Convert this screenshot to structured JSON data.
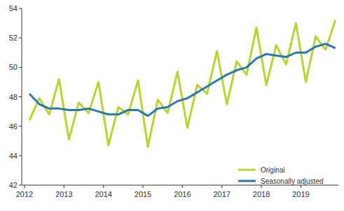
{
  "chart_data": {
    "type": "line",
    "x": [
      2012.125,
      2012.375,
      2012.625,
      2012.875,
      2013.125,
      2013.375,
      2013.625,
      2013.875,
      2014.125,
      2014.375,
      2014.625,
      2014.875,
      2015.125,
      2015.375,
      2015.625,
      2015.875,
      2016.125,
      2016.375,
      2016.625,
      2016.875,
      2017.125,
      2017.375,
      2017.625,
      2017.875,
      2018.125,
      2018.375,
      2018.625,
      2018.875,
      2019.125,
      2019.375,
      2019.625,
      2019.875
    ],
    "series": [
      {
        "name": "Original",
        "color": "#b8d432",
        "values": [
          46.4,
          47.9,
          46.8,
          49.2,
          45.1,
          47.6,
          46.9,
          49.0,
          44.7,
          47.3,
          46.8,
          49.1,
          44.6,
          47.8,
          46.9,
          49.7,
          45.9,
          48.8,
          48.2,
          51.1,
          47.5,
          50.4,
          49.5,
          52.7,
          48.8,
          51.5,
          50.2,
          53.0,
          49.0,
          52.1,
          51.2,
          53.2
        ]
      },
      {
        "name": "Seasonally adjusted",
        "color": "#2878b0",
        "values": [
          48.2,
          47.5,
          47.2,
          47.2,
          47.1,
          47.1,
          47.2,
          47.0,
          46.8,
          46.8,
          47.1,
          47.1,
          46.7,
          47.2,
          47.3,
          47.7,
          47.9,
          48.3,
          48.7,
          49.1,
          49.5,
          49.8,
          50.0,
          50.6,
          50.9,
          50.8,
          50.7,
          51.0,
          51.0,
          51.4,
          51.6,
          51.3
        ]
      }
    ],
    "xlim": [
      2011.93,
      2019.95
    ],
    "xticks": [
      2012,
      2013,
      2014,
      2015,
      2016,
      2017,
      2018,
      2019
    ],
    "ylim": [
      42,
      54
    ],
    "yticks": [
      42,
      44,
      46,
      48,
      50,
      52,
      54
    ],
    "grid": false,
    "legend": "bottom-right"
  }
}
